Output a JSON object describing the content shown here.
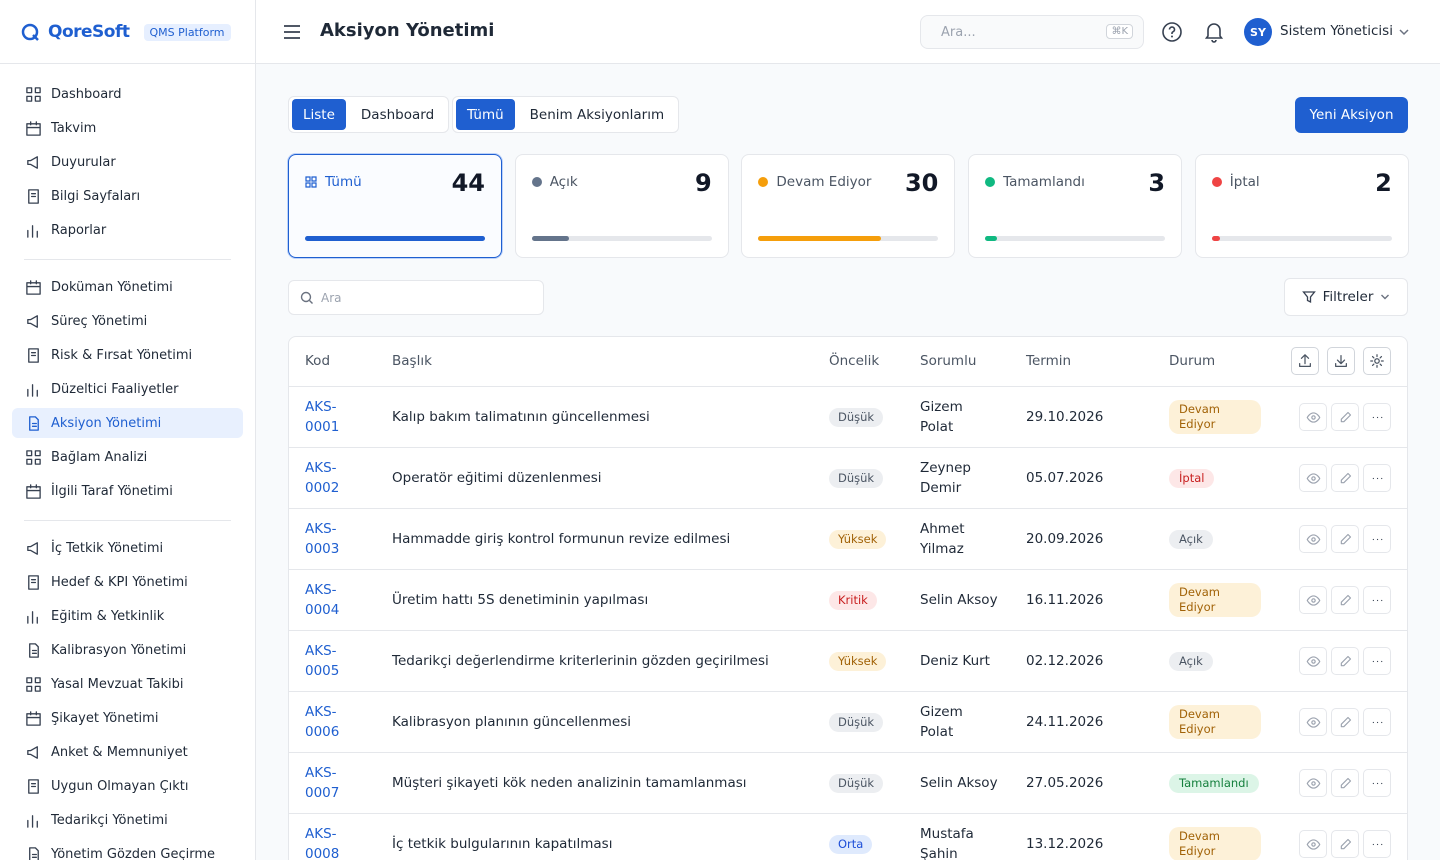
{
  "sidebar": {
    "brand": "QoreSoft",
    "badge": "QMS Platform",
    "groups": [
      [
        "Dashboard",
        "Takvim",
        "Duyurular",
        "Bilgi Sayfaları",
        "Raporlar"
      ],
      [
        "Doküman Yönetimi",
        "Süreç Yönetimi",
        "Risk & Fırsat Yönetimi",
        "Düzeltici Faaliyetler",
        "Aksiyon Yönetimi",
        "Bağlam Analizi",
        "İlgili Taraf Yönetimi"
      ],
      [
        "İç Tetkik Yönetimi",
        "Hedef & KPI Yönetimi",
        "Eğitim & Yetkinlik",
        "Kalibrasyon Yönetimi",
        "Yasal Mevzuat Takibi",
        "Şikayet Yönetimi",
        "Anket & Memnuniyet",
        "Uygun Olmayan Çıktı",
        "Tedarikçi Yönetimi",
        "Yönetim Gözden Geçirme"
      ]
    ]
  },
  "header": {
    "title": "Aksiyon Yönetimi",
    "search_placeholder": "Ara...",
    "shortcut": "⌘K",
    "user_initials": "SY",
    "user_name": "Sistem Yöneticisi"
  },
  "toolbar": {
    "view_tabs": [
      "Liste",
      "Dashboard"
    ],
    "scope_tabs": [
      "Tümü",
      "Benim Aksiyonlarım"
    ],
    "new_button": "Yeni Aksiyon"
  },
  "status_cards": [
    {
      "label": "Tümü",
      "count": 44,
      "color": "#1f5fd0"
    },
    {
      "label": "Açık",
      "count": 9,
      "color": "#64748b"
    },
    {
      "label": "Devam Ediyor",
      "count": 30,
      "color": "#f59e0b"
    },
    {
      "label": "Tamamlandı",
      "count": 3,
      "color": "#10b981"
    },
    {
      "label": "İptal",
      "count": 2,
      "color": "#ef4444"
    }
  ],
  "filter": {
    "search_placeholder": "Ara",
    "filters_button": "Filtreler"
  },
  "table": {
    "columns": [
      "Kod",
      "Başlık",
      "Öncelik",
      "Sorumlu",
      "Termin",
      "Durum"
    ],
    "rows": [
      {
        "code": "AKS-0001",
        "title": "Kalıp bakım talimatının güncellenmesi",
        "priority": "Düşük",
        "priority_tone": "gray",
        "owner": "Gizem Polat",
        "due": "29.10.2026",
        "status": "Devam Ediyor",
        "status_tone": "amber"
      },
      {
        "code": "AKS-0002",
        "title": "Operatör eğitimi düzenlenmesi",
        "priority": "Düşük",
        "priority_tone": "gray",
        "owner": "Zeynep Demir",
        "due": "05.07.2026",
        "status": "İptal",
        "status_tone": "red"
      },
      {
        "code": "AKS-0003",
        "title": "Hammadde giriş kontrol formunun revize edilmesi",
        "priority": "Yüksek",
        "priority_tone": "amber",
        "owner": "Ahmet Yilmaz",
        "due": "20.09.2026",
        "status": "Açık",
        "status_tone": "gray"
      },
      {
        "code": "AKS-0004",
        "title": "Üretim hattı 5S denetiminin yapılması",
        "priority": "Kritik",
        "priority_tone": "red",
        "owner": "Selin Aksoy",
        "due": "16.11.2026",
        "status": "Devam Ediyor",
        "status_tone": "amber"
      },
      {
        "code": "AKS-0005",
        "title": "Tedarikçi değerlendirme kriterlerinin gözden geçirilmesi",
        "priority": "Yüksek",
        "priority_tone": "amber",
        "owner": "Deniz Kurt",
        "due": "02.12.2026",
        "status": "Açık",
        "status_tone": "gray"
      },
      {
        "code": "AKS-0006",
        "title": "Kalibrasyon planının güncellenmesi",
        "priority": "Düşük",
        "priority_tone": "gray",
        "owner": "Gizem Polat",
        "due": "24.11.2026",
        "status": "Devam Ediyor",
        "status_tone": "amber"
      },
      {
        "code": "AKS-0007",
        "title": "Müşteri şikayeti kök neden analizinin tamamlanması",
        "priority": "Düşük",
        "priority_tone": "gray",
        "owner": "Selin Aksoy",
        "due": "27.05.2026",
        "status": "Tamamlandı",
        "status_tone": "green"
      },
      {
        "code": "AKS-0008",
        "title": "İç tetkik bulgularının kapatılması",
        "priority": "Orta",
        "priority_tone": "blue",
        "owner": "Mustafa Şahin",
        "due": "13.12.2026",
        "status": "Devam Ediyor",
        "status_tone": "amber"
      }
    ]
  }
}
